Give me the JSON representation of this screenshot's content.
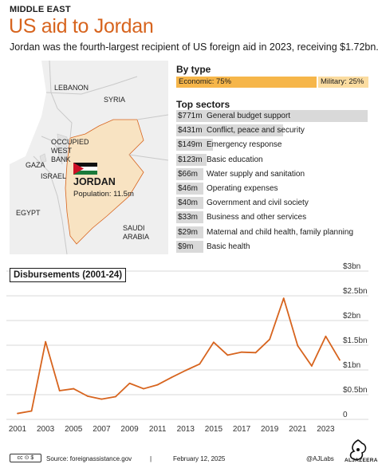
{
  "header": {
    "kicker": "MIDDLE EAST",
    "title": "US aid to Jordan",
    "subtitle": "Jordan was the fourth-largest recipient of US foreign aid in 2023, receiving $1.72bn."
  },
  "map": {
    "labels": {
      "lebanon": "LEBANON",
      "syria": "SYRIA",
      "occupied_west_bank_1": "OCCUPIED",
      "occupied_west_bank_2": "WEST",
      "occupied_west_bank_3": "BANK",
      "gaza": "GAZA",
      "israel": "ISRAEL",
      "egypt": "EGYPT",
      "saudi_1": "SAUDI",
      "saudi_2": "ARABIA"
    },
    "country": "JORDAN",
    "population": "Population: 11.5m",
    "colors": {
      "jordan": "#f8e3c2",
      "land": "#efefef",
      "border": "#d7641e"
    }
  },
  "by_type": {
    "heading": "By type",
    "economic": {
      "label": "Economic: 75%",
      "share": 0.75,
      "color": "#f6b64a"
    },
    "military": {
      "label": "Military: 25%",
      "share": 0.25,
      "color": "#fbdca0"
    }
  },
  "sectors": {
    "heading": "Top sectors",
    "items": [
      {
        "amount": "$771m",
        "name": "General budget support",
        "value": 771
      },
      {
        "amount": "$431m",
        "name": "Conflict, peace and security",
        "value": 431
      },
      {
        "amount": "$149m",
        "name": "Water supply and sanitation",
        "value": 149,
        "override_name": "Emergency response"
      },
      {
        "amount": "$123m",
        "name": "Basic education",
        "value": 123
      },
      {
        "amount": "$66m",
        "name": "Water supply and sanitation",
        "value": 66
      },
      {
        "amount": "$46m",
        "name": "Operating expenses",
        "value": 46
      },
      {
        "amount": "$40m",
        "name": "Government and civil society",
        "value": 40
      },
      {
        "amount": "$33m",
        "name": "Business and other services",
        "value": 33
      },
      {
        "amount": "$29m",
        "name": "Maternal and child health, family planning",
        "value": 29
      },
      {
        "amount": "$9m",
        "name": "Basic health",
        "value": 9
      }
    ]
  },
  "chart_data": {
    "type": "line",
    "title": "Disbursements (2001-24)",
    "x": [
      2001,
      2002,
      2003,
      2004,
      2005,
      2006,
      2007,
      2008,
      2009,
      2010,
      2011,
      2012,
      2013,
      2014,
      2015,
      2016,
      2017,
      2018,
      2019,
      2020,
      2021,
      2022,
      2023,
      2024
    ],
    "series": [
      {
        "values": [
          0.12,
          0.17,
          1.57,
          0.58,
          0.62,
          0.47,
          0.41,
          0.46,
          0.73,
          0.62,
          0.7,
          0.85,
          0.99,
          1.12,
          1.56,
          1.3,
          1.36,
          1.35,
          1.62,
          2.45,
          1.49,
          1.08,
          1.68,
          1.2
        ],
        "color": "#d7641e"
      }
    ],
    "xticks": [
      "2001",
      "2003",
      "2005",
      "2007",
      "2009",
      "2011",
      "2013",
      "2015",
      "2017",
      "2019",
      "2021",
      "2023"
    ],
    "xtick_values": [
      2001,
      2003,
      2005,
      2007,
      2009,
      2011,
      2013,
      2015,
      2017,
      2019,
      2021,
      2023
    ],
    "yticks": [
      "0",
      "$0.5bn",
      "$1bn",
      "$1.5bn",
      "$2bn",
      "$2.5bn",
      "$3bn"
    ],
    "ytick_values": [
      0,
      0.5,
      1,
      1.5,
      2,
      2.5,
      3
    ],
    "ylim": [
      0,
      3
    ],
    "xlim": [
      2001,
      2024
    ],
    "grid": true
  },
  "footer": {
    "license": "cc by nc",
    "source": "Source:  foreignassistance.gov",
    "separator": "|",
    "date": "February 12, 2025",
    "credit": "@AJLabs",
    "logo_text": "ALJAZEERA"
  }
}
